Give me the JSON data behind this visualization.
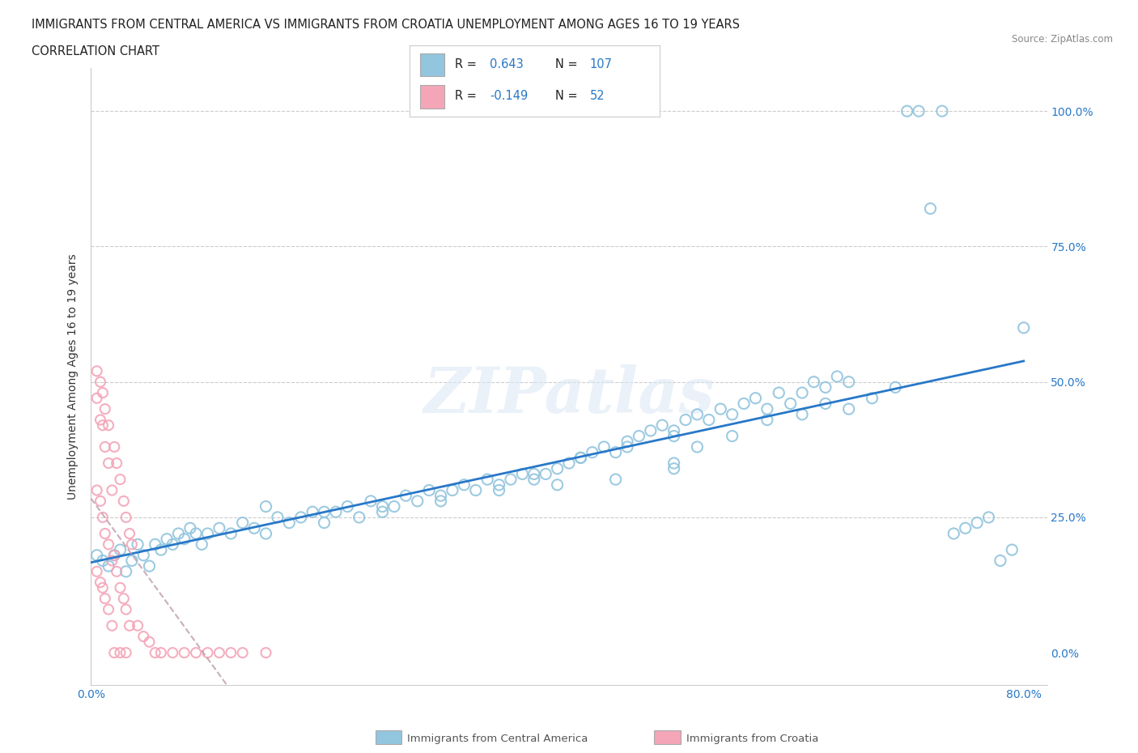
{
  "title_line1": "IMMIGRANTS FROM CENTRAL AMERICA VS IMMIGRANTS FROM CROATIA UNEMPLOYMENT AMONG AGES 16 TO 19 YEARS",
  "title_line2": "CORRELATION CHART",
  "source_text": "Source: ZipAtlas.com",
  "ylabel": "Unemployment Among Ages 16 to 19 years",
  "watermark": "ZIPatlas",
  "r_central_america": "0.643",
  "n_central_america": "107",
  "r_croatia": "-0.149",
  "n_croatia": "52",
  "blue_color": "#92c5de",
  "pink_color": "#f4a5b8",
  "blue_line_color": "#2878c8",
  "pink_line_color": "#c0a0b0",
  "background_color": "#ffffff",
  "xmin": 0.0,
  "xmax": 0.82,
  "ymin": -0.06,
  "ymax": 1.08,
  "blue_scatter_x": [
    0.005,
    0.01,
    0.015,
    0.02,
    0.025,
    0.03,
    0.035,
    0.04,
    0.045,
    0.05,
    0.055,
    0.06,
    0.065,
    0.07,
    0.075,
    0.08,
    0.085,
    0.09,
    0.095,
    0.1,
    0.11,
    0.12,
    0.13,
    0.14,
    0.15,
    0.16,
    0.17,
    0.18,
    0.19,
    0.2,
    0.21,
    0.22,
    0.23,
    0.24,
    0.25,
    0.26,
    0.27,
    0.28,
    0.29,
    0.3,
    0.31,
    0.32,
    0.33,
    0.34,
    0.35,
    0.36,
    0.37,
    0.38,
    0.39,
    0.4,
    0.41,
    0.42,
    0.43,
    0.44,
    0.45,
    0.46,
    0.47,
    0.48,
    0.49,
    0.5,
    0.51,
    0.52,
    0.53,
    0.54,
    0.55,
    0.56,
    0.57,
    0.58,
    0.59,
    0.6,
    0.61,
    0.62,
    0.63,
    0.64,
    0.65,
    0.5,
    0.52,
    0.55,
    0.58,
    0.61,
    0.63,
    0.65,
    0.67,
    0.69,
    0.7,
    0.71,
    0.72,
    0.73,
    0.74,
    0.75,
    0.76,
    0.77,
    0.78,
    0.79,
    0.8,
    0.38,
    0.42,
    0.46,
    0.5,
    0.15,
    0.2,
    0.25,
    0.3,
    0.35,
    0.4,
    0.45,
    0.5
  ],
  "blue_scatter_y": [
    0.18,
    0.17,
    0.16,
    0.18,
    0.19,
    0.15,
    0.17,
    0.2,
    0.18,
    0.16,
    0.2,
    0.19,
    0.21,
    0.2,
    0.22,
    0.21,
    0.23,
    0.22,
    0.2,
    0.22,
    0.23,
    0.22,
    0.24,
    0.23,
    0.22,
    0.25,
    0.24,
    0.25,
    0.26,
    0.24,
    0.26,
    0.27,
    0.25,
    0.28,
    0.26,
    0.27,
    0.29,
    0.28,
    0.3,
    0.29,
    0.3,
    0.31,
    0.3,
    0.32,
    0.31,
    0.32,
    0.33,
    0.32,
    0.33,
    0.34,
    0.35,
    0.36,
    0.37,
    0.38,
    0.37,
    0.39,
    0.4,
    0.41,
    0.42,
    0.4,
    0.43,
    0.44,
    0.43,
    0.45,
    0.44,
    0.46,
    0.47,
    0.45,
    0.48,
    0.46,
    0.48,
    0.5,
    0.49,
    0.51,
    0.5,
    0.35,
    0.38,
    0.4,
    0.43,
    0.44,
    0.46,
    0.45,
    0.47,
    0.49,
    1.0,
    1.0,
    0.82,
    1.0,
    0.22,
    0.23,
    0.24,
    0.25,
    0.17,
    0.19,
    0.6,
    0.33,
    0.36,
    0.38,
    0.41,
    0.27,
    0.26,
    0.27,
    0.28,
    0.3,
    0.31,
    0.32,
    0.34
  ],
  "pink_scatter_x": [
    0.005,
    0.008,
    0.01,
    0.012,
    0.015,
    0.018,
    0.005,
    0.008,
    0.01,
    0.012,
    0.015,
    0.018,
    0.005,
    0.008,
    0.01,
    0.012,
    0.015,
    0.018,
    0.005,
    0.008,
    0.01,
    0.012,
    0.015,
    0.02,
    0.022,
    0.025,
    0.028,
    0.03,
    0.033,
    0.035,
    0.02,
    0.022,
    0.025,
    0.028,
    0.03,
    0.033,
    0.02,
    0.025,
    0.03,
    0.04,
    0.045,
    0.05,
    0.055,
    0.06,
    0.07,
    0.08,
    0.09,
    0.1,
    0.11,
    0.12,
    0.13,
    0.15
  ],
  "pink_scatter_y": [
    0.47,
    0.43,
    0.42,
    0.38,
    0.35,
    0.3,
    0.3,
    0.28,
    0.25,
    0.22,
    0.2,
    0.17,
    0.15,
    0.13,
    0.12,
    0.1,
    0.08,
    0.05,
    0.52,
    0.5,
    0.48,
    0.45,
    0.42,
    0.38,
    0.35,
    0.32,
    0.28,
    0.25,
    0.22,
    0.2,
    0.18,
    0.15,
    0.12,
    0.1,
    0.08,
    0.05,
    0.0,
    0.0,
    0.0,
    0.05,
    0.03,
    0.02,
    0.0,
    0.0,
    0.0,
    0.0,
    0.0,
    0.0,
    0.0,
    0.0,
    0.0,
    0.0
  ],
  "ytick_labels_right": [
    "0.0%",
    "25.0%",
    "50.0%",
    "75.0%",
    "100.0%"
  ],
  "ytick_values": [
    0.0,
    0.25,
    0.5,
    0.75,
    1.0
  ],
  "xtick_labels": [
    "0.0%",
    "",
    "",
    "",
    "",
    "",
    "",
    "",
    "80.0%"
  ],
  "xtick_values": [
    0.0,
    0.1,
    0.2,
    0.3,
    0.4,
    0.5,
    0.6,
    0.7,
    0.8
  ],
  "legend_label_blue": "Immigrants from Central America",
  "legend_label_pink": "Immigrants from Croatia"
}
